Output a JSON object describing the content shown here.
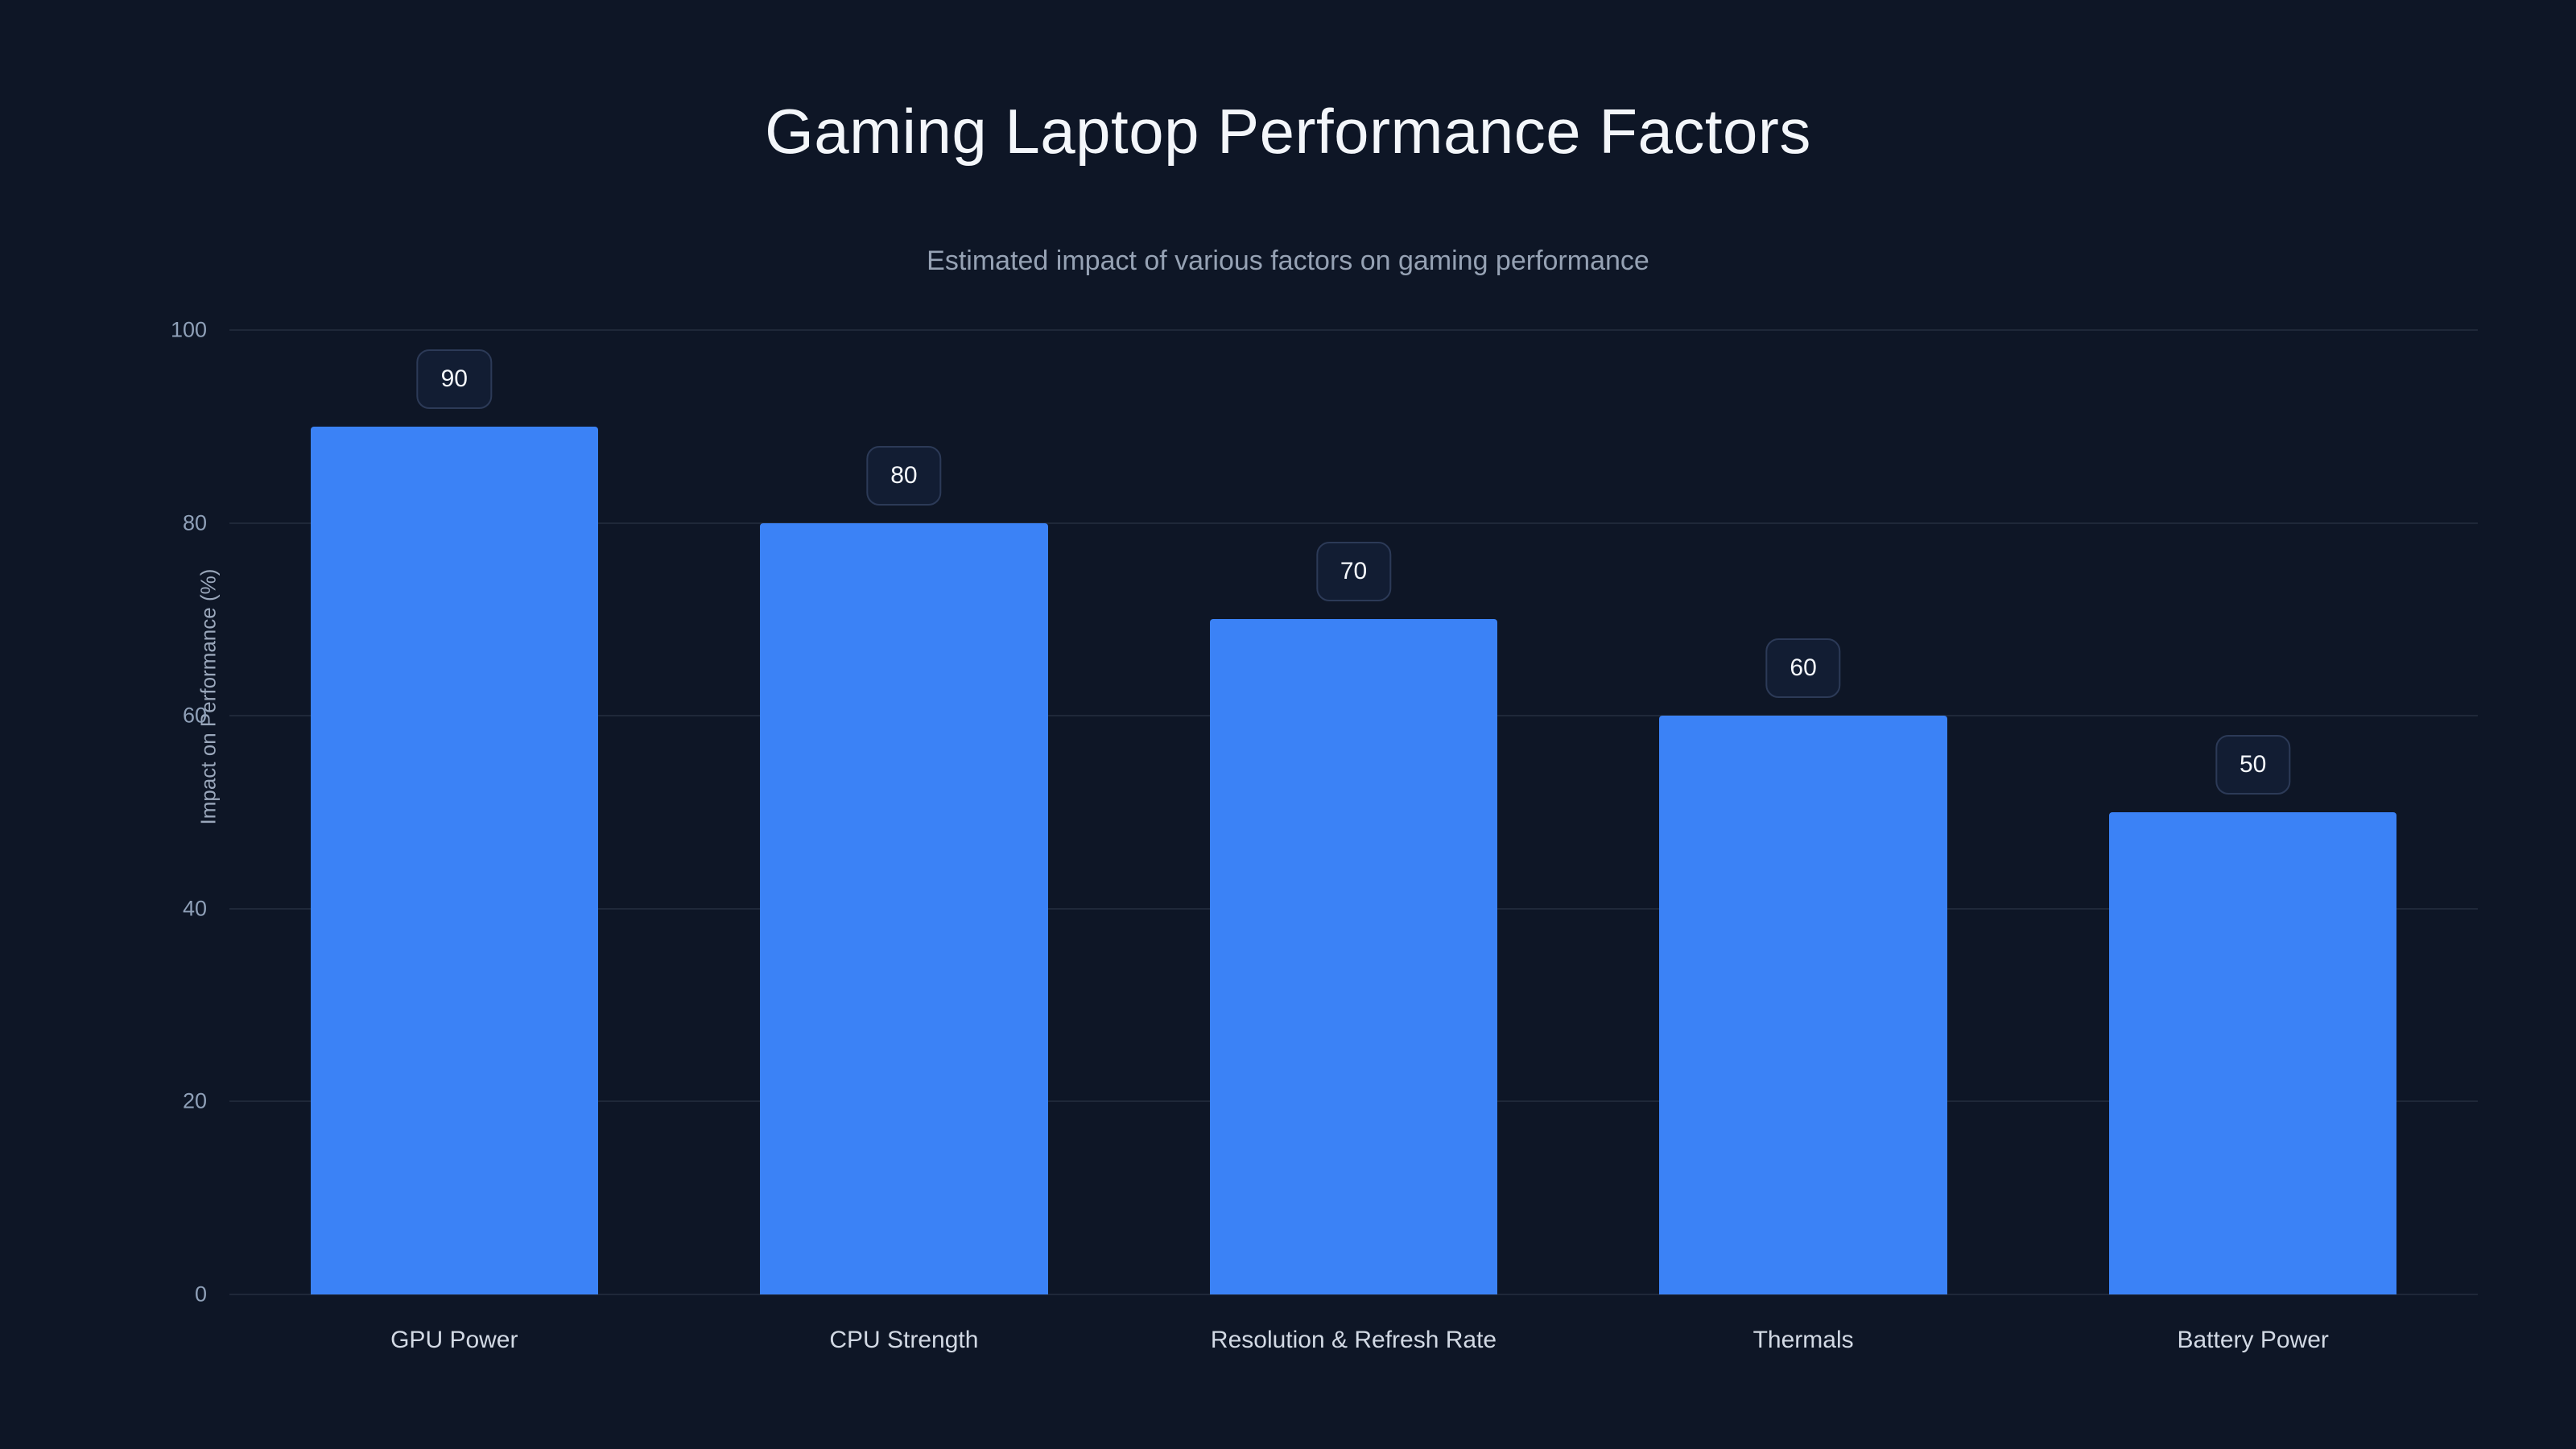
{
  "header": {
    "title": "Gaming Laptop Performance Factors",
    "subtitle": "Estimated impact of various factors on gaming performance"
  },
  "chart_data": {
    "type": "bar",
    "title": "Gaming Laptop Performance Factors",
    "subtitle": "Estimated impact of various factors on gaming performance",
    "categories": [
      "GPU Power",
      "CPU Strength",
      "Resolution & Refresh Rate",
      "Thermals",
      "Battery Power"
    ],
    "values": [
      90,
      80,
      70,
      60,
      50
    ],
    "value_labels": [
      "90",
      "80",
      "70",
      "60",
      "50"
    ],
    "xlabel": "",
    "ylabel": "Impact on Performance (%)",
    "ylim": [
      0,
      100
    ],
    "yticks": [
      0,
      20,
      40,
      60,
      80,
      100
    ],
    "grid": true,
    "legend": false,
    "bar_color": "#3b82f6",
    "background_color": "#0e1626",
    "label_badge_border_color": "#2c3a57"
  }
}
